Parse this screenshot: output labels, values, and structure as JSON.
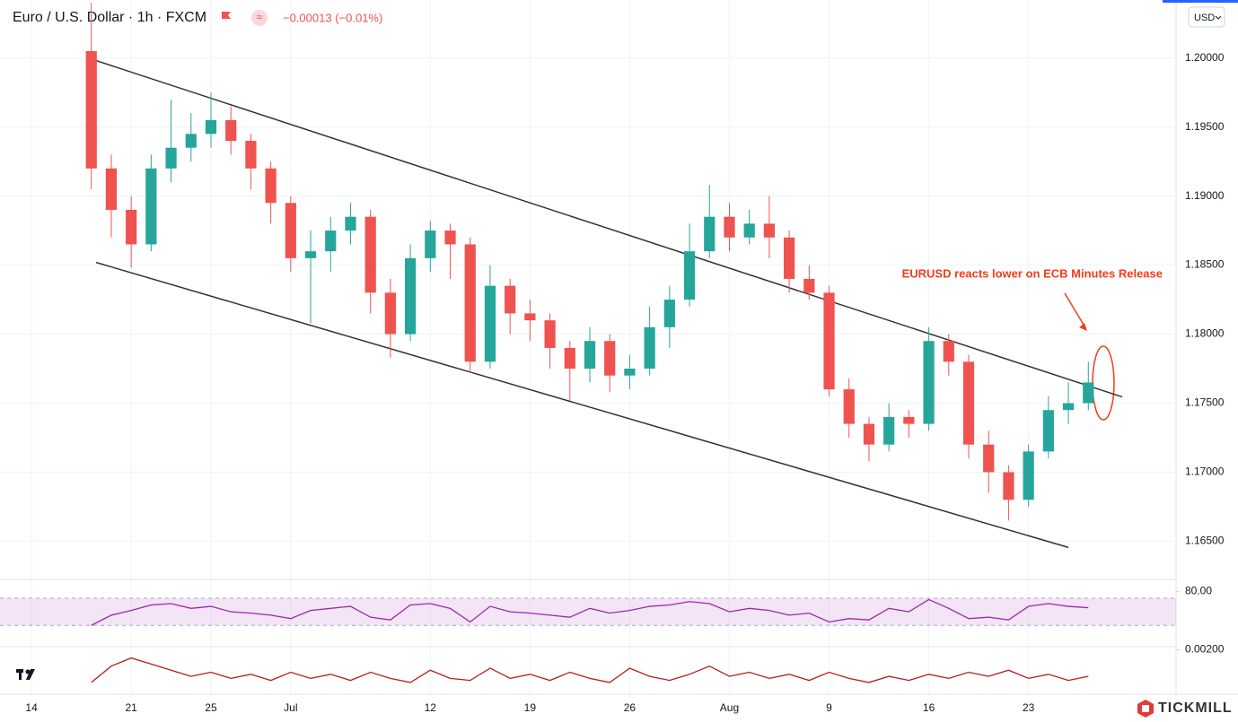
{
  "chart_data": {
    "type": "candlestick",
    "title": "Euro / U.S. Dollar · 1h · FXCM",
    "change": "−0.00013 (−0.01%)",
    "currency": "USD",
    "annotation": "EURUSD reacts lower on ECB Minutes Release",
    "brand": "TICKMILL",
    "up_color": "#26a69a",
    "down_color": "#ef5350",
    "x": [
      3,
      4,
      5,
      6,
      7,
      8,
      9,
      10,
      11,
      12,
      13,
      14,
      15,
      16,
      17,
      18,
      19,
      20,
      21,
      22,
      23,
      24,
      25,
      26,
      27,
      28,
      29,
      30,
      31,
      32,
      33,
      34,
      35,
      36,
      37,
      38,
      39,
      40,
      41,
      42,
      43,
      44,
      45,
      46,
      47,
      48,
      49,
      50,
      51,
      52,
      53
    ],
    "open": [
      1.2005,
      1.192,
      1.189,
      1.1865,
      1.192,
      1.1935,
      1.1945,
      1.1955,
      1.194,
      1.192,
      1.1895,
      1.1855,
      1.186,
      1.1875,
      1.1885,
      1.183,
      1.18,
      1.1855,
      1.1875,
      1.1865,
      1.178,
      1.1835,
      1.1815,
      1.181,
      1.179,
      1.1775,
      1.1795,
      1.177,
      1.1775,
      1.1805,
      1.1825,
      1.186,
      1.1885,
      1.187,
      1.188,
      1.187,
      1.184,
      1.183,
      1.176,
      1.1735,
      1.172,
      1.174,
      1.1735,
      1.1795,
      1.178,
      1.172,
      1.17,
      1.168,
      1.1715,
      1.1745,
      1.175
    ],
    "high": [
      1.204,
      1.193,
      1.19,
      1.193,
      1.197,
      1.196,
      1.1975,
      1.1965,
      1.1945,
      1.1925,
      1.19,
      1.1875,
      1.1885,
      1.1895,
      1.189,
      1.184,
      1.1865,
      1.1882,
      1.188,
      1.187,
      1.185,
      1.184,
      1.1825,
      1.1815,
      1.1795,
      1.1805,
      1.18,
      1.1785,
      1.182,
      1.1835,
      1.188,
      1.1908,
      1.1895,
      1.189,
      1.19,
      1.1875,
      1.185,
      1.1835,
      1.1768,
      1.174,
      1.175,
      1.1745,
      1.1805,
      1.18,
      1.1785,
      1.173,
      1.1705,
      1.172,
      1.1755,
      1.1765,
      1.178
    ],
    "low": [
      1.1905,
      1.187,
      1.1848,
      1.186,
      1.191,
      1.1925,
      1.1935,
      1.193,
      1.1905,
      1.188,
      1.1845,
      1.1808,
      1.1845,
      1.1865,
      1.1815,
      1.1783,
      1.1795,
      1.1845,
      1.184,
      1.1772,
      1.1775,
      1.18,
      1.1795,
      1.1775,
      1.1752,
      1.1765,
      1.1758,
      1.176,
      1.177,
      1.179,
      1.182,
      1.1855,
      1.186,
      1.1865,
      1.1855,
      1.183,
      1.1825,
      1.1755,
      1.1725,
      1.1708,
      1.1715,
      1.1725,
      1.173,
      1.177,
      1.171,
      1.1685,
      1.1665,
      1.1675,
      1.171,
      1.1735,
      1.1745
    ],
    "close": [
      1.192,
      1.189,
      1.1865,
      1.192,
      1.1935,
      1.1945,
      1.1955,
      1.194,
      1.192,
      1.1895,
      1.1855,
      1.186,
      1.1875,
      1.1885,
      1.183,
      1.18,
      1.1855,
      1.1875,
      1.1865,
      1.178,
      1.1835,
      1.1815,
      1.181,
      1.179,
      1.1775,
      1.1795,
      1.177,
      1.1775,
      1.1805,
      1.1825,
      1.186,
      1.1885,
      1.187,
      1.188,
      1.187,
      1.184,
      1.183,
      1.176,
      1.1735,
      1.172,
      1.174,
      1.1735,
      1.1795,
      1.178,
      1.172,
      1.17,
      1.168,
      1.1715,
      1.1745,
      1.175,
      1.1765
    ],
    "xlim": [
      -1.58,
      57.4
    ],
    "ylim": [
      1.1623,
      1.2042
    ],
    "xticks": [
      {
        "value": 0,
        "label": "14"
      },
      {
        "value": 5,
        "label": "21"
      },
      {
        "value": 9,
        "label": "25"
      },
      {
        "value": 13,
        "label": "Jul"
      },
      {
        "value": 20,
        "label": "12"
      },
      {
        "value": 25,
        "label": "19"
      },
      {
        "value": 30,
        "label": "26"
      },
      {
        "value": 35,
        "label": "Aug"
      },
      {
        "value": 40,
        "label": "9"
      },
      {
        "value": 45,
        "label": "16"
      },
      {
        "value": 50,
        "label": "23"
      }
    ],
    "yticks": [
      {
        "value": 1.2,
        "label": "1.20000"
      },
      {
        "value": 1.195,
        "label": "1.19500"
      },
      {
        "value": 1.19,
        "label": "1.19000"
      },
      {
        "value": 1.185,
        "label": "1.18500"
      },
      {
        "value": 1.18,
        "label": "1.18000"
      },
      {
        "value": 1.175,
        "label": "1.17500"
      },
      {
        "value": 1.17,
        "label": "1.17000"
      },
      {
        "value": 1.165,
        "label": "1.16500"
      }
    ],
    "grid": true,
    "trendlines": [
      {
        "x": [
          3.24,
          54.7
        ],
        "y": [
          1.19981,
          1.17545
        ],
        "color": "#333333"
      },
      {
        "x": [
          3.24,
          52.0
        ],
        "y": [
          1.18519,
          1.16455
        ],
        "color": "#333333"
      }
    ],
    "rsi": {
      "color": "#9c27b0",
      "ylim": [
        0,
        95
      ],
      "band": [
        30,
        70
      ],
      "yticks": [
        {
          "value": 80,
          "label": "80.00"
        }
      ],
      "values": [
        30,
        45,
        52,
        60,
        62,
        55,
        58,
        50,
        48,
        45,
        40,
        52,
        55,
        58,
        42,
        38,
        60,
        62,
        55,
        35,
        58,
        50,
        48,
        45,
        42,
        55,
        48,
        52,
        58,
        60,
        65,
        62,
        50,
        55,
        52,
        45,
        48,
        35,
        40,
        38,
        55,
        50,
        68,
        55,
        40,
        42,
        38,
        58,
        62,
        58,
        56
      ]
    },
    "osc": {
      "color": "#b71c1c",
      "ylim": [
        0,
        0.00211
      ],
      "yticks": [
        {
          "value": 0.002,
          "label": "0.00200"
        }
      ],
      "values": [
        0.0004,
        0.0012,
        0.0016,
        0.0013,
        0.001,
        0.0007,
        0.0009,
        0.0006,
        0.0008,
        0.0005,
        0.0009,
        0.0006,
        0.0008,
        0.0005,
        0.0009,
        0.0006,
        0.0004,
        0.001,
        0.0006,
        0.0005,
        0.0011,
        0.0006,
        0.0008,
        0.0005,
        0.0009,
        0.0006,
        0.0004,
        0.0011,
        0.0007,
        0.0005,
        0.0008,
        0.0012,
        0.0007,
        0.0009,
        0.0006,
        0.0008,
        0.0005,
        0.0009,
        0.0006,
        0.0004,
        0.0007,
        0.0005,
        0.0008,
        0.0006,
        0.0009,
        0.0007,
        0.001,
        0.0006,
        0.0008,
        0.0005,
        0.0007
      ]
    }
  }
}
